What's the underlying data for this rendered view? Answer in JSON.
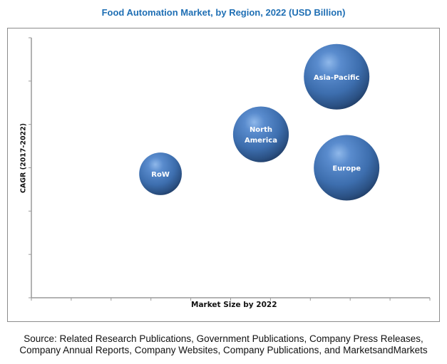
{
  "chart_data": {
    "type": "bubble",
    "title": "Food Automation Market, by Region, 2022  (USD Billion)",
    "xlabel": "Market Size by 2022",
    "ylabel": "CAGR (2017-2022)",
    "xlim": [
      0,
      10
    ],
    "ylim": [
      0,
      6
    ],
    "x_ticks_count": 11,
    "y_ticks_count": 7,
    "x_tick_labels": [],
    "y_tick_labels": [],
    "grid": false,
    "legend": "none",
    "bubble_color": "#3f6fae",
    "points": [
      {
        "label": "Asia-Pacific",
        "label_lines": [
          "Asia-Pacific"
        ],
        "x": 7.66,
        "y": 5.1,
        "size": 1.0
      },
      {
        "label": "North America",
        "label_lines": [
          "North",
          "America"
        ],
        "x": 5.76,
        "y": 3.77,
        "size": 0.85
      },
      {
        "label": "Europe",
        "label_lines": [
          "Europe"
        ],
        "x": 7.91,
        "y": 3.0,
        "size": 1.0
      },
      {
        "label": "RoW",
        "label_lines": [
          "RoW"
        ],
        "x": 3.24,
        "y": 2.86,
        "size": 0.65
      }
    ]
  },
  "source": {
    "line1": "Source: Related Research Publications, Government Publications, Company Press Releases,",
    "line2": "Company Annual Reports, Company Websites, Company Publications, and MarketsandMarkets"
  }
}
